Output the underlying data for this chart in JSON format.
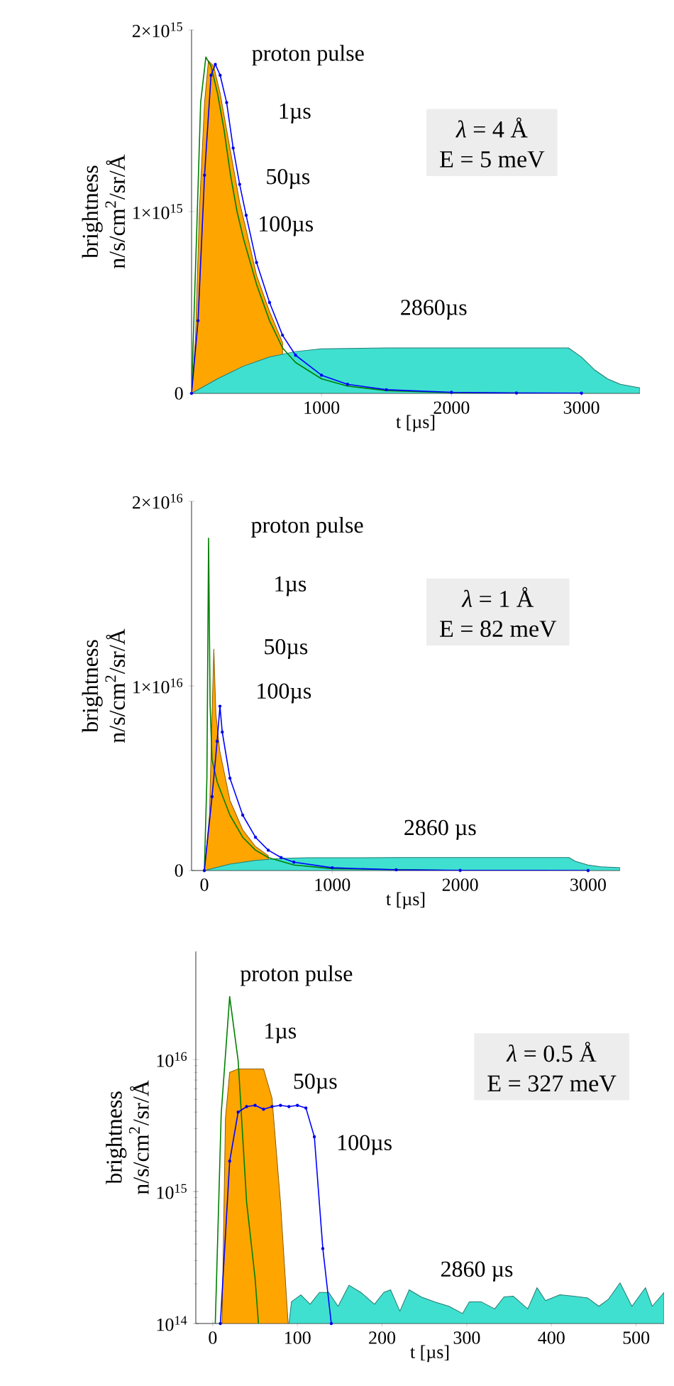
{
  "chart_data": [
    {
      "type": "line",
      "xlabel": "t [µs]",
      "ylabel": "brightness n/s/cm$^{2}$/sr/Å",
      "xlim": [
        0,
        3450
      ],
      "ylim": [
        0,
        2000000000000000.0
      ],
      "xticks": [
        1000,
        2000,
        3000
      ],
      "yticks": [
        0,
        {
          "value": 1000000000000000.0,
          "label": "1×10$^{15}$"
        },
        {
          "value": 2000000000000000.0,
          "label": "2×10$^{15}$"
        }
      ],
      "annotations": [
        "proton pulse",
        "1µs",
        "50µs",
        "100µs",
        "2860µs",
        "*λ* = 4 Å",
        "E = 5 meV"
      ],
      "series": [
        {
          "type": "area",
          "color": "#ffa500",
          "x": [
            0,
            30,
            60,
            100,
            130,
            170,
            220,
            270,
            320,
            370,
            420,
            500,
            600,
            700
          ],
          "values": [
            0,
            300000000000000.0,
            1000000000000000.0,
            1600000000000000.0,
            1830000000000000.0,
            1800000000000000.0,
            1650000000000000.0,
            1450000000000000.0,
            1250000000000000.0,
            1050000000000000.0,
            900000000000000.0,
            650000000000000.0,
            450000000000000.0,
            280000000000000.0
          ]
        },
        {
          "type": "area",
          "color": "#40e0d0",
          "x": [
            0,
            200,
            400,
            600,
            800,
            1000,
            1500,
            2000,
            2500,
            2900,
            3000,
            3100,
            3200,
            3300,
            3450
          ],
          "values": [
            0,
            80000000000000.0,
            150000000000000.0,
            200000000000000.0,
            230000000000000.0,
            245000000000000.0,
            250000000000000.0,
            250000000000000.0,
            250000000000000.0,
            250000000000000.0,
            200000000000000.0,
            130000000000000.0,
            80000000000000.0,
            50000000000000.0,
            30000000000000.0
          ]
        },
        {
          "color": "#008000",
          "x": [
            0,
            40,
            70,
            110,
            150,
            200,
            250,
            300,
            350,
            400,
            500,
            600,
            700,
            800,
            1000,
            1200,
            1500,
            2000,
            2500,
            3000
          ],
          "values": [
            0,
            900000000000000.0,
            1600000000000000.0,
            1850000000000000.0,
            1800000000000000.0,
            1650000000000000.0,
            1450000000000000.0,
            1200000000000000.0,
            1000000000000000.0,
            850000000000000.0,
            600000000000000.0,
            400000000000000.0,
            250000000000000.0,
            170000000000000.0,
            80000000000000.0,
            40000000000000.0,
            15000000000000.0,
            4000000000000.0,
            null,
            0
          ]
        },
        {
          "color": "#0000ff",
          "marker": "circle",
          "x": [
            0,
            50,
            100,
            150,
            183,
            220,
            270,
            320,
            370,
            420,
            500,
            600,
            700,
            800,
            1000,
            1200,
            1500,
            2000,
            2500,
            3000
          ],
          "values": [
            0,
            400000000000000.0,
            1200000000000000.0,
            1750000000000000.0,
            1810000000000000.0,
            1750000000000000.0,
            1600000000000000.0,
            1350000000000000.0,
            1150000000000000.0,
            980000000000000.0,
            720000000000000.0,
            500000000000000.0,
            320000000000000.0,
            210000000000000.0,
            100000000000000.0,
            50000000000000.0,
            20000000000000.0,
            6000000000000.0,
            2000000000000.0,
            1000000000000.0
          ]
        }
      ]
    },
    {
      "type": "line",
      "xlabel": "t [µs]",
      "ylabel": "brightness n/s/cm$^{2}$/sr/Å",
      "xlim": [
        -100,
        3250
      ],
      "ylim": [
        0,
        2e+16
      ],
      "xticks": [
        0,
        1000,
        2000,
        3000
      ],
      "yticks": [
        0,
        {
          "value": 1e+16,
          "label": "1×10$^{16}$"
        },
        {
          "value": 2e+16,
          "label": "2×10$^{16}$"
        }
      ],
      "annotations": [
        "proton pulse",
        "1µs",
        "50µs",
        "100µs",
        "2860 µs",
        "*λ* = 1 Å",
        "E = 82 meV"
      ],
      "series": [
        {
          "type": "area",
          "color": "#ffa500",
          "x": [
            0,
            40,
            74,
            90,
            120,
            200,
            300,
            400,
            500
          ],
          "values": [
            0,
            3000000000000000.0,
            1.2e+16,
            8500000000000000.0,
            6500000000000000.0,
            3800000000000000.0,
            2200000000000000.0,
            1300000000000000.0,
            800000000000000.0
          ]
        },
        {
          "type": "area",
          "color": "#40e0d0",
          "x": [
            0,
            200,
            400,
            600,
            800,
            1500,
            2850,
            2900,
            3000,
            3100,
            3250
          ],
          "values": [
            0,
            350000000000000.0,
            550000000000000.0,
            650000000000000.0,
            690000000000000.0,
            700000000000000.0,
            700000000000000.0,
            500000000000000.0,
            300000000000000.0,
            200000000000000.0,
            150000000000000.0
          ]
        },
        {
          "color": "#008000",
          "x": [
            0,
            20,
            33,
            45,
            60,
            100,
            200,
            300,
            400,
            500,
            700,
            1000,
            1500,
            2000
          ],
          "values": [
            0,
            5000000000000000.0,
            1.8e+16,
            9000000000000000.0,
            6000000000000000.0,
            4800000000000000.0,
            3000000000000000.0,
            1800000000000000.0,
            1100000000000000.0,
            700000000000000.0,
            300000000000000.0,
            100000000000000.0,
            null,
            0
          ]
        },
        {
          "color": "#0000ff",
          "marker": "circle",
          "x": [
            0,
            60,
            100,
            122,
            140,
            200,
            300,
            400,
            500,
            600,
            700,
            1000,
            1500,
            2000,
            3000
          ],
          "values": [
            0,
            4000000000000000.0,
            7000000000000000.0,
            8900000000000000.0,
            7500000000000000.0,
            5000000000000000.0,
            3000000000000000.0,
            1800000000000000.0,
            1100000000000000.0,
            700000000000000.0,
            450000000000000.0,
            150000000000000.0,
            40000000000000.0,
            10000000000000.0,
            0
          ]
        }
      ]
    },
    {
      "type": "line",
      "log": true,
      "xlabel": "t [µs]",
      "ylabel": "brightness n/s/cm$^{2}$/sr/Å",
      "xlim": [
        -20,
        533
      ],
      "ylim": [
        100000000000000.0,
        6.6e+16
      ],
      "xticks": [
        0,
        100,
        200,
        300,
        400,
        500
      ],
      "yticks": [
        {
          "value": 100000000000000.0,
          "label": "10$^{14}$"
        },
        {
          "value": 1000000000000000.0,
          "label": "10$^{15}$"
        },
        {
          "value": 1e+16,
          "label": "10$^{16}$"
        }
      ],
      "annotations": [
        "proton pulse",
        "1µs",
        "50µs",
        "100µs",
        "2860 µs",
        "*λ* = 0.5 Å",
        "E = 327 meV"
      ],
      "series": [
        {
          "type": "area",
          "color": "#ffa500",
          "x": [
            11,
            15,
            20,
            30,
            40,
            50,
            60,
            70,
            80,
            89
          ],
          "values": [
            100000000000000.0,
            3600000000000000.0,
            8000000000000000.0,
            8500000000000000.0,
            8500000000000000.0,
            8500000000000000.0,
            8500000000000000.0,
            5100000000000000.0,
            830000000000000.0,
            100000000000000.0
          ]
        },
        {
          "type": "area",
          "color": "#40e0d0",
          "x": [
            90,
            93,
            104,
            115,
            126,
            137,
            148,
            161,
            175,
            191,
            202,
            210,
            221,
            232,
            246,
            262,
            279,
            295,
            303,
            317,
            333,
            344,
            355,
            372,
            383,
            393,
            410,
            426,
            443,
            456,
            467,
            481,
            495,
            511,
            519,
            533
          ],
          "values": [
            100000000000000.0,
            146000000000000.0,
            165000000000000.0,
            140000000000000.0,
            172000000000000.0,
            172000000000000.0,
            135000000000000.0,
            195000000000000.0,
            172000000000000.0,
            140000000000000.0,
            172000000000000.0,
            180000000000000.0,
            124000000000000.0,
            180000000000000.0,
            159000000000000.0,
            146000000000000.0,
            135000000000000.0,
            119000000000000.0,
            146000000000000.0,
            146000000000000.0,
            129000000000000.0,
            159000000000000.0,
            161000000000000.0,
            129000000000000.0,
            187000000000000.0,
            149000000000000.0,
            165000000000000.0,
            161000000000000.0,
            156000000000000.0,
            135000000000000.0,
            152000000000000.0,
            203000000000000.0,
            135000000000000.0,
            187000000000000.0,
            135000000000000.0,
            172000000000000.0
          ]
        },
        {
          "color": "#008000",
          "x": [
            3,
            10,
            20,
            30,
            40,
            50,
            54
          ],
          "values": [
            100000000000000.0,
            3900000000000000.0,
            3e+16,
            9800000000000000.0,
            830000000000000.0,
            220000000000000.0,
            100000000000000.0
          ]
        },
        {
          "color": "#0000ff",
          "marker": "circle",
          "x": [
            9,
            20,
            30,
            40,
            50,
            60,
            70,
            80,
            90,
            100,
            110,
            120,
            130,
            140
          ],
          "values": [
            100000000000000.0,
            1700000000000000.0,
            4000000000000000.0,
            4400000000000000.0,
            4500000000000000.0,
            4200000000000000.0,
            4400000000000000.0,
            4500000000000000.0,
            4400000000000000.0,
            4500000000000000.0,
            4300000000000000.0,
            2600000000000000.0,
            370000000000000.0,
            100000000000000.0
          ]
        }
      ]
    }
  ]
}
